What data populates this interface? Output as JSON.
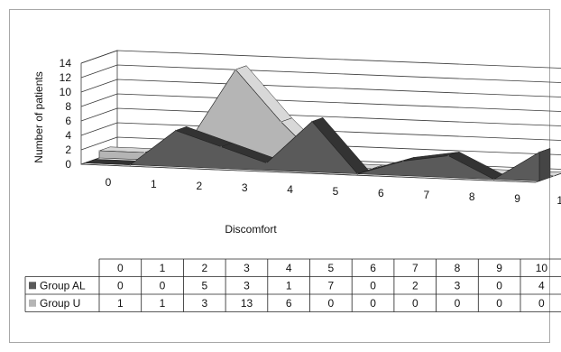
{
  "chart_data": {
    "type": "area",
    "three_d": true,
    "title": "",
    "xlabel": "Discomfort",
    "ylabel": "Number of patients",
    "ylim": [
      0,
      14
    ],
    "yticks": [
      0,
      2,
      4,
      6,
      8,
      10,
      12,
      14
    ],
    "categories": [
      "0",
      "1",
      "2",
      "3",
      "4",
      "5",
      "6",
      "7",
      "8",
      "9",
      "10"
    ],
    "grid": true,
    "legend": "data table below chart",
    "series": [
      {
        "name": "Group AL",
        "values": [
          0,
          0,
          5,
          3,
          1,
          7,
          0,
          2,
          3,
          0,
          4
        ],
        "color": "#5a5a5a"
      },
      {
        "name": "Group U",
        "values": [
          1,
          1,
          3,
          13,
          6,
          0,
          0,
          0,
          0,
          0,
          0
        ],
        "color": "#b5b5b5"
      }
    ],
    "data_table": {
      "header": [
        "0",
        "1",
        "2",
        "3",
        "4",
        "5",
        "6",
        "7",
        "8",
        "9",
        "10"
      ],
      "rows": [
        {
          "label": "Group AL",
          "values": [
            "0",
            "0",
            "5",
            "3",
            "1",
            "7",
            "0",
            "2",
            "3",
            "0",
            "4"
          ]
        },
        {
          "label": "Group U",
          "values": [
            "1",
            "1",
            "3",
            "13",
            "6",
            "0",
            "0",
            "0",
            "0",
            "0",
            "0"
          ]
        }
      ]
    }
  }
}
